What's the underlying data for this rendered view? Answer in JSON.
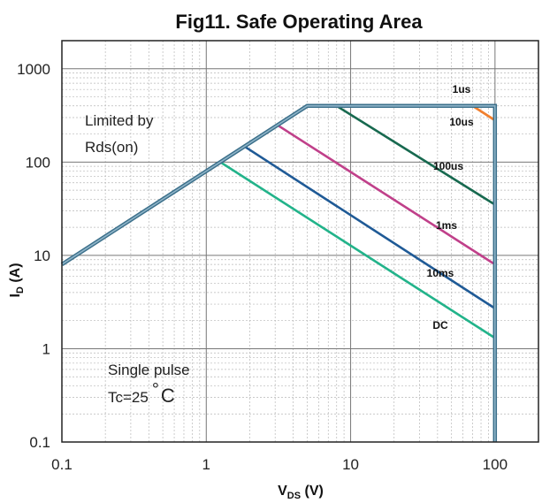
{
  "chart_data": {
    "type": "line",
    "title": "Fig11. Safe Operating Area",
    "xlabel": {
      "main": "V",
      "sub": "DS",
      "unit": " (V)"
    },
    "ylabel": {
      "main": "I",
      "sub": "D",
      "unit": " (A)"
    },
    "xscale": "log",
    "yscale": "log",
    "xlim": [
      0.1,
      200
    ],
    "ylim": [
      0.1,
      2000
    ],
    "xticks": [
      0.1,
      1,
      10,
      100
    ],
    "xtick_labels": [
      "0.1",
      "1",
      "10",
      "100"
    ],
    "yticks": [
      0.1,
      1,
      10,
      100,
      1000
    ],
    "ytick_labels": [
      "0.1",
      "1",
      "10",
      "100",
      "1000"
    ],
    "grid": true,
    "legend": "none",
    "annotations": [
      {
        "lines": [
          "Limited by",
          "Rds(on)"
        ]
      },
      {
        "lines": [
          "Single pulse",
          "Tc=25",
          "°",
          "C"
        ]
      }
    ],
    "series": [
      {
        "name": "1us",
        "color": "#f07f2e",
        "x": [
          70,
          100
        ],
        "y": [
          400,
          280
        ]
      },
      {
        "name": "10us",
        "color": "#f07f2e",
        "x": [
          70,
          100
        ],
        "y": [
          400,
          280
        ]
      },
      {
        "name": "100us",
        "color": "#17694f",
        "x": [
          8,
          100
        ],
        "y": [
          400,
          35
        ]
      },
      {
        "name": "1ms",
        "color": "#c0408a",
        "x": [
          3.1,
          100
        ],
        "y": [
          250,
          8
        ]
      },
      {
        "name": "10ms",
        "color": "#1f5a96",
        "x": [
          1.8,
          100
        ],
        "y": [
          150,
          2.7
        ]
      },
      {
        "name": "DC",
        "color": "#22b38a",
        "x": [
          1.25,
          100
        ],
        "y": [
          100,
          1.3
        ]
      }
    ],
    "boundary": {
      "color": "#4a8aa8",
      "x": [
        0.1,
        5,
        100,
        100
      ],
      "y": [
        8,
        400,
        400,
        0.1
      ]
    }
  }
}
